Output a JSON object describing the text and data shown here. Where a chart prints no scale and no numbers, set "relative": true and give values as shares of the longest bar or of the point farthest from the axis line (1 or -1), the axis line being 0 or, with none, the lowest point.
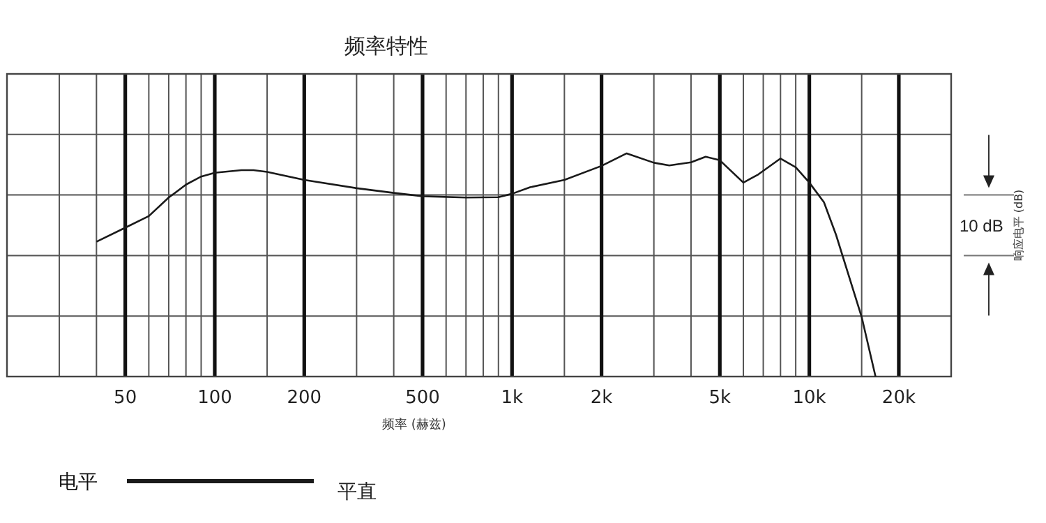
{
  "chart_data": {
    "type": "line",
    "title": "频率特性",
    "xlabel": "频率 (赫兹)",
    "log": "x",
    "relative": true,
    "grid": true,
    "legend": "bottom left",
    "legend_title": "电平",
    "annotations": [
      "10 dB",
      "响应电平 (dB)"
    ],
    "xlim": [
      20,
      30000
    ],
    "xticks": [
      {
        "value": 30,
        "label": null
      },
      {
        "value": 40,
        "label": null
      },
      50,
      {
        "value": 60,
        "label": null
      },
      {
        "value": 70,
        "label": null
      },
      {
        "value": 80,
        "label": null
      },
      {
        "value": 90,
        "label": null
      },
      100,
      {
        "value": 150,
        "label": null
      },
      200,
      {
        "value": 300,
        "label": null
      },
      {
        "value": 400,
        "label": null
      },
      500,
      {
        "value": 600,
        "label": null
      },
      {
        "value": 700,
        "label": null
      },
      {
        "value": 800,
        "label": null
      },
      {
        "value": 900,
        "label": null
      },
      {
        "value": 1000,
        "label": "1k"
      },
      {
        "value": 1500,
        "label": null
      },
      {
        "value": 2000,
        "label": "2k"
      },
      {
        "value": 3000,
        "label": null
      },
      {
        "value": 4000,
        "label": null
      },
      {
        "value": 5000,
        "label": "5k"
      },
      {
        "value": 6000,
        "label": null
      },
      {
        "value": 7000,
        "label": null
      },
      {
        "value": 8000,
        "label": null
      },
      {
        "value": 9000,
        "label": null
      },
      {
        "value": 10000,
        "label": "10k"
      },
      {
        "value": 15000,
        "label": null
      },
      {
        "value": 20000,
        "label": "20k"
      }
    ],
    "series": [
      {
        "name": "平直",
        "color": "#1a1a1a",
        "x": [
          40,
          50,
          60,
          70,
          80,
          90,
          100,
          123,
          135,
          150,
          200,
          300,
          400,
          500,
          700,
          900,
          1000,
          1150,
          1500,
          2000,
          2430,
          3000,
          3380,
          4000,
          4480,
          5000,
          6000,
          6740,
          8000,
          9000,
          10000,
          11200,
          12300,
          15000,
          16700
        ],
        "values": [
          0.604,
          0.667,
          0.719,
          0.802,
          0.86,
          0.896,
          0.913,
          0.925,
          0.925,
          0.917,
          0.881,
          0.844,
          0.823,
          0.808,
          0.802,
          0.804,
          0.819,
          0.848,
          0.881,
          0.944,
          1.0,
          0.958,
          0.946,
          0.96,
          0.985,
          0.969,
          0.869,
          0.906,
          0.977,
          0.938,
          0.869,
          0.781,
          0.635,
          0.267,
          0
        ]
      }
    ]
  }
}
